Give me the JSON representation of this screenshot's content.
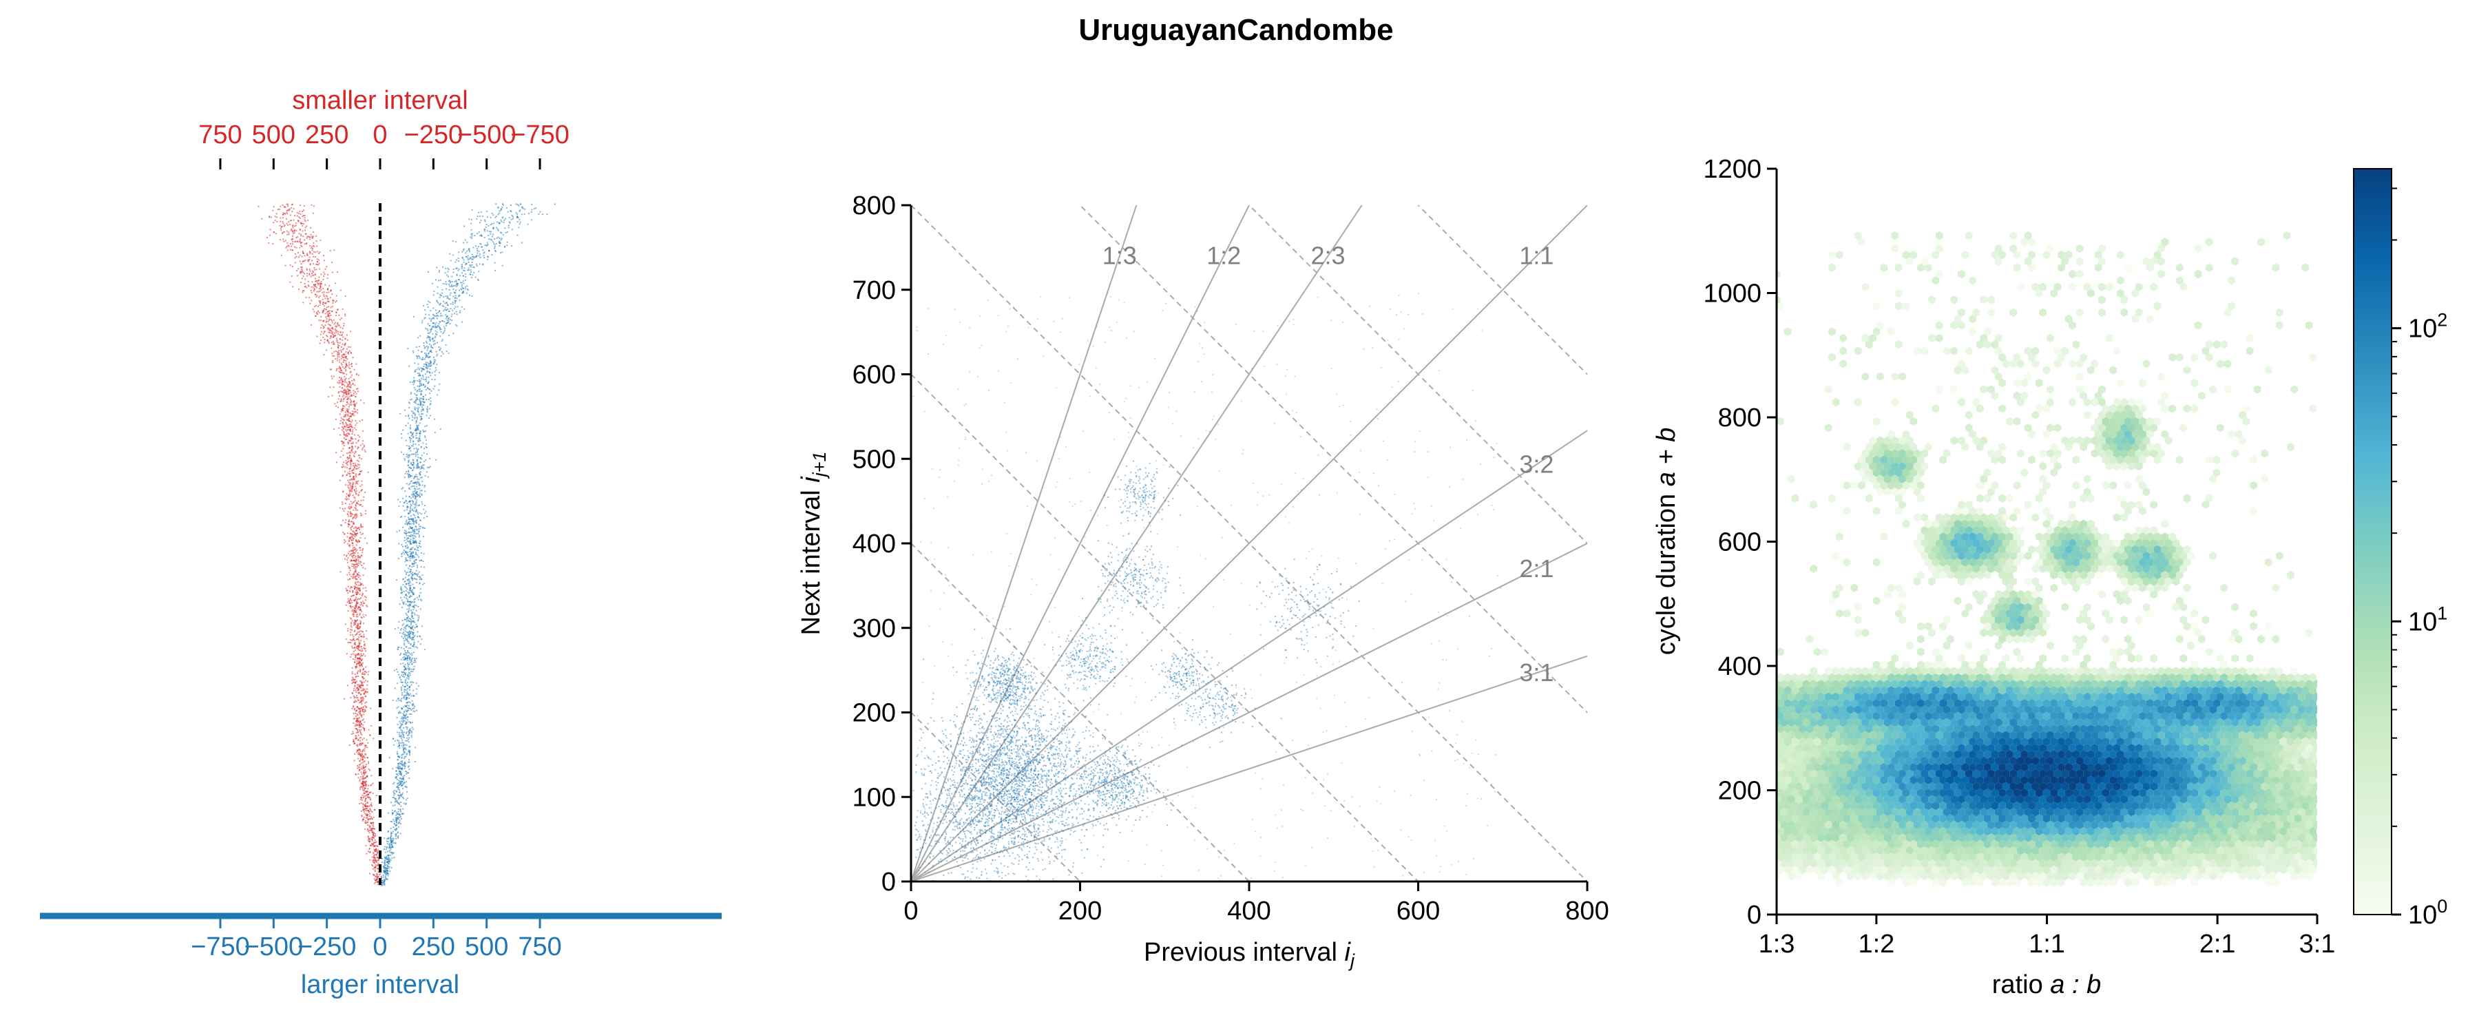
{
  "figure": {
    "title": "UruguayanCandombe"
  },
  "colors": {
    "smaller": "#d62728",
    "larger": "#1f77b4",
    "guide": "#aaaaaa",
    "guide_text": "#808080",
    "cmap": [
      "#f7fcf0",
      "#e0f3db",
      "#ccebc5",
      "#a8ddb5",
      "#7bccc4",
      "#4eb3d3",
      "#2b8cbe",
      "#0868ac",
      "#084081"
    ]
  },
  "chart_data": [
    {
      "type": "scatter",
      "panel": "interval-spread",
      "top_axis_label": "smaller interval",
      "bottom_axis_label": "larger interval",
      "top_ticks": [
        "750",
        "500",
        "250",
        "0",
        "−250",
        "−500",
        "−750"
      ],
      "bottom_ticks": [
        "−750",
        "−500",
        "−250",
        "0",
        "250",
        "500",
        "750"
      ],
      "xlim": [
        -800,
        800
      ],
      "series": [
        {
          "name": "smaller interval",
          "median_edge": [
            [
              0.0,
              -10
            ],
            [
              0.05,
              -30
            ],
            [
              0.1,
              -60
            ],
            [
              0.2,
              -95
            ],
            [
              0.35,
              -110
            ],
            [
              0.5,
              -125
            ],
            [
              0.65,
              -140
            ],
            [
              0.75,
              -165
            ],
            [
              0.82,
              -230
            ],
            [
              0.88,
              -300
            ],
            [
              0.94,
              -380
            ],
            [
              1.0,
              -450
            ]
          ]
        },
        {
          "name": "larger interval",
          "median_edge": [
            [
              0.0,
              10
            ],
            [
              0.05,
              40
            ],
            [
              0.1,
              75
            ],
            [
              0.2,
              110
            ],
            [
              0.35,
              130
            ],
            [
              0.5,
              145
            ],
            [
              0.65,
              165
            ],
            [
              0.75,
              200
            ],
            [
              0.82,
              260
            ],
            [
              0.88,
              350
            ],
            [
              0.94,
              480
            ],
            [
              1.0,
              640
            ]
          ]
        }
      ],
      "center_line": 0
    },
    {
      "type": "scatter",
      "panel": "return-map",
      "xlabel": "Previous interval",
      "xlabel_var": "i",
      "xlabel_sub": "j",
      "ylabel": "Next interval",
      "ylabel_var": "i",
      "ylabel_sub": "j+1",
      "xlim": [
        0,
        800
      ],
      "ylim": [
        0,
        800
      ],
      "x_ticks": [
        "0",
        "200",
        "400",
        "600",
        "800"
      ],
      "y_ticks": [
        "0",
        "100",
        "200",
        "300",
        "400",
        "500",
        "600",
        "700",
        "800"
      ],
      "ratio_lines": [
        {
          "label": "1:3",
          "slope": 3
        },
        {
          "label": "1:2",
          "slope": 2
        },
        {
          "label": "2:3",
          "slope": 1.5
        },
        {
          "label": "1:1",
          "slope": 1
        },
        {
          "label": "3:2",
          "slope": 0.6667
        },
        {
          "label": "2:1",
          "slope": 0.5
        },
        {
          "label": "3:1",
          "slope": 0.3333
        }
      ],
      "constant_sum_lines": [
        200,
        400,
        600,
        800,
        1000,
        1200,
        1400,
        1600
      ],
      "clusters": [
        {
          "x": 120,
          "y": 120,
          "spread": 45,
          "weight": 30
        },
        {
          "x": 240,
          "y": 115,
          "spread": 22,
          "weight": 6
        },
        {
          "x": 110,
          "y": 235,
          "spread": 18,
          "weight": 5
        },
        {
          "x": 210,
          "y": 265,
          "spread": 18,
          "weight": 3
        },
        {
          "x": 265,
          "y": 355,
          "spread": 22,
          "weight": 3
        },
        {
          "x": 270,
          "y": 460,
          "spread": 15,
          "weight": 2
        },
        {
          "x": 320,
          "y": 245,
          "spread": 15,
          "weight": 2
        },
        {
          "x": 360,
          "y": 210,
          "spread": 18,
          "weight": 2
        },
        {
          "x": 465,
          "y": 320,
          "spread": 25,
          "weight": 2
        },
        {
          "x": 60,
          "y": 60,
          "spread": 40,
          "weight": 5
        }
      ]
    },
    {
      "type": "heatmap",
      "panel": "cycle-ratio-hexbin",
      "xlabel": "ratio",
      "xlabel_expr": "a : b",
      "ylabel": "cycle duration",
      "ylabel_expr": "a + b",
      "x_ticks": [
        "1:3",
        "1:2",
        "1:1",
        "2:1",
        "3:1"
      ],
      "y_ticks": [
        "0",
        "200",
        "400",
        "600",
        "800",
        "1000",
        "1200"
      ],
      "ylim": [
        0,
        1200
      ],
      "xlim_log2": [
        -1.585,
        1.585
      ],
      "colorbar_scale": "log",
      "colorbar_range": [
        1,
        350
      ],
      "colorbar_ticks": [
        {
          "base": "10",
          "exp": "0"
        },
        {
          "base": "10",
          "exp": "1"
        },
        {
          "base": "10",
          "exp": "2"
        }
      ],
      "blobs": [
        {
          "r": 0.0,
          "d": 225,
          "sx": 0.45,
          "sy": 40,
          "peak": 350
        },
        {
          "r": 0.0,
          "d": 330,
          "sx": 1.1,
          "sy": 25,
          "peak": 40
        },
        {
          "r": -0.73,
          "d": 340,
          "sx": 0.25,
          "sy": 20,
          "peak": 60
        },
        {
          "r": 0.95,
          "d": 340,
          "sx": 0.25,
          "sy": 20,
          "peak": 50
        },
        {
          "r": -0.45,
          "d": 595,
          "sx": 0.12,
          "sy": 22,
          "peak": 30
        },
        {
          "r": 0.15,
          "d": 585,
          "sx": 0.08,
          "sy": 22,
          "peak": 25
        },
        {
          "r": 0.6,
          "d": 570,
          "sx": 0.1,
          "sy": 20,
          "peak": 25
        },
        {
          "r": -0.18,
          "d": 480,
          "sx": 0.08,
          "sy": 18,
          "peak": 20
        },
        {
          "r": -0.9,
          "d": 725,
          "sx": 0.08,
          "sy": 20,
          "peak": 18
        },
        {
          "r": 0.45,
          "d": 770,
          "sx": 0.08,
          "sy": 25,
          "peak": 15
        },
        {
          "r": 0.0,
          "d": 150,
          "sx": 1.4,
          "sy": 50,
          "peak": 8
        }
      ]
    }
  ]
}
